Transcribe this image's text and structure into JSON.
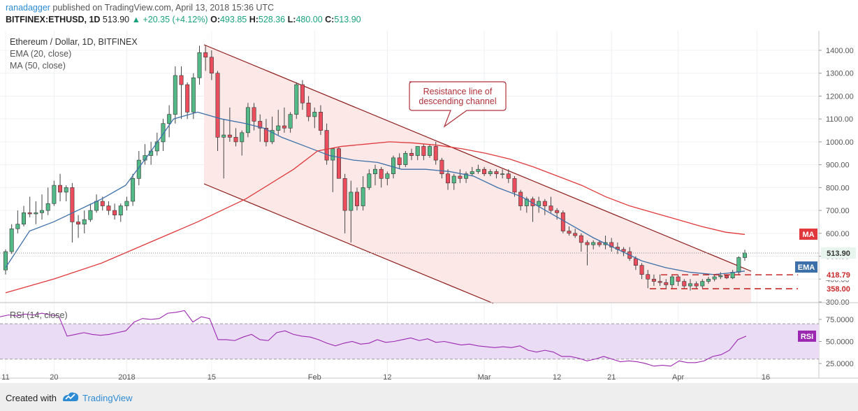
{
  "header": {
    "author": "ranadagger",
    "published": " published on TradingView.com, April 13, 2018 15:36 UTC",
    "symbol": "BITFINEX:ETHUSD, 1D ",
    "price": "513.90",
    "change": " +20.35 (+4.12%)",
    "change_arrow": "▲",
    "o_label": "O:",
    "o": "493.85",
    "h_label": "H:",
    "h": "528.36",
    "l_label": "L:",
    "l": "480.00",
    "c_label": "C:",
    "c": "513.90"
  },
  "legend": {
    "title": "Ethereum / Dollar, 1D, BITFINEX",
    "ema": "EMA (20, close)",
    "ma": "MA (50, close)",
    "rsi": "RSI (14, close)"
  },
  "annotation": {
    "line1": "Resistance line of",
    "line2": "descending channel"
  },
  "footer": {
    "created": "Created with",
    "brand": "TradingView"
  },
  "colors": {
    "up": "#53b987",
    "down": "#eb4d5c",
    "ema": "#3d6fa8",
    "ma": "#e0383c",
    "rsi": "#9c27b0",
    "channel_line": "#8b1a1a",
    "channel_fill": "#fbe5e3",
    "rsi_band": "#eadcf5"
  },
  "chart_data": {
    "type": "candlestick",
    "title": "Ethereum / Dollar, 1D, BITFINEX",
    "price_axis": {
      "ticks": [
        "1400.00",
        "1300.00",
        "1200.00",
        "1100.00",
        "1000.00",
        "900.00",
        "800.00",
        "700.00",
        "600.00",
        "500.00",
        "400.00",
        "300.00"
      ],
      "ylim": [
        300,
        1450
      ]
    },
    "x_ticks": [
      "11",
      "20",
      "2018",
      "15",
      "Feb",
      "12",
      "Mar",
      "12",
      "21",
      "Apr",
      "16"
    ],
    "date_range": [
      "2017-12-11",
      "2018-04-13"
    ],
    "candles_ohlc": [
      [
        440,
        530,
        420,
        520
      ],
      [
        520,
        640,
        510,
        620
      ],
      [
        620,
        700,
        600,
        640
      ],
      [
        640,
        720,
        630,
        690
      ],
      [
        690,
        760,
        670,
        685
      ],
      [
        685,
        740,
        640,
        690
      ],
      [
        690,
        770,
        660,
        700
      ],
      [
        700,
        800,
        680,
        730
      ],
      [
        730,
        830,
        720,
        810
      ],
      [
        810,
        860,
        740,
        780
      ],
      [
        780,
        810,
        740,
        800
      ],
      [
        800,
        820,
        560,
        650
      ],
      [
        650,
        680,
        580,
        640
      ],
      [
        640,
        700,
        600,
        660
      ],
      [
        660,
        730,
        650,
        700
      ],
      [
        700,
        770,
        690,
        740
      ],
      [
        740,
        760,
        700,
        720
      ],
      [
        720,
        740,
        680,
        700
      ],
      [
        700,
        730,
        660,
        680
      ],
      [
        680,
        730,
        650,
        720
      ],
      [
        720,
        760,
        700,
        740
      ],
      [
        740,
        860,
        720,
        840
      ],
      [
        840,
        960,
        810,
        920
      ],
      [
        920,
        990,
        900,
        940
      ],
      [
        940,
        1000,
        900,
        960
      ],
      [
        960,
        1040,
        940,
        1000
      ],
      [
        1000,
        1100,
        960,
        1080
      ],
      [
        1080,
        1160,
        1020,
        1120
      ],
      [
        1120,
        1330,
        1080,
        1290
      ],
      [
        1290,
        1330,
        1100,
        1250
      ],
      [
        1250,
        1260,
        1100,
        1130
      ],
      [
        1130,
        1300,
        1100,
        1280
      ],
      [
        1280,
        1420,
        1250,
        1390
      ],
      [
        1390,
        1420,
        1310,
        1370
      ],
      [
        1370,
        1400,
        1270,
        1300
      ],
      [
        1300,
        1310,
        960,
        1020
      ],
      [
        1020,
        1100,
        840,
        1030
      ],
      [
        1030,
        1150,
        1000,
        1020
      ],
      [
        1020,
        1060,
        980,
        1000
      ],
      [
        1000,
        1050,
        940,
        1040
      ],
      [
        1040,
        1170,
        1020,
        1150
      ],
      [
        1150,
        1170,
        1050,
        1090
      ],
      [
        1090,
        1120,
        1000,
        1060
      ],
      [
        1060,
        1100,
        980,
        1000
      ],
      [
        1000,
        1110,
        990,
        1050
      ],
      [
        1050,
        1140,
        1030,
        1070
      ],
      [
        1070,
        1150,
        1040,
        1060
      ],
      [
        1060,
        1130,
        1040,
        1120
      ],
      [
        1120,
        1260,
        1100,
        1250
      ],
      [
        1250,
        1270,
        1140,
        1170
      ],
      [
        1170,
        1200,
        1090,
        1110
      ],
      [
        1110,
        1150,
        1060,
        1130
      ],
      [
        1130,
        1160,
        1030,
        1050
      ],
      [
        1050,
        1080,
        900,
        920
      ],
      [
        920,
        970,
        780,
        970
      ],
      [
        970,
        980,
        870,
        840
      ],
      [
        840,
        860,
        600,
        700
      ],
      [
        700,
        830,
        560,
        780
      ],
      [
        780,
        800,
        700,
        720
      ],
      [
        720,
        850,
        700,
        800
      ],
      [
        800,
        880,
        790,
        860
      ],
      [
        860,
        900,
        810,
        880
      ],
      [
        880,
        890,
        800,
        840
      ],
      [
        840,
        870,
        810,
        860
      ],
      [
        860,
        940,
        840,
        930
      ],
      [
        930,
        950,
        880,
        900
      ],
      [
        900,
        960,
        890,
        950
      ],
      [
        950,
        970,
        920,
        940
      ],
      [
        940,
        980,
        920,
        980
      ],
      [
        980,
        990,
        920,
        940
      ],
      [
        940,
        990,
        930,
        980
      ],
      [
        980,
        1000,
        900,
        920
      ],
      [
        920,
        930,
        840,
        860
      ],
      [
        860,
        880,
        790,
        820
      ],
      [
        820,
        860,
        790,
        850
      ],
      [
        850,
        880,
        820,
        840
      ],
      [
        840,
        870,
        820,
        860
      ],
      [
        860,
        890,
        850,
        870
      ],
      [
        870,
        900,
        860,
        880
      ],
      [
        880,
        890,
        850,
        860
      ],
      [
        860,
        880,
        850,
        870
      ],
      [
        870,
        880,
        840,
        860
      ],
      [
        860,
        880,
        840,
        860
      ],
      [
        860,
        880,
        820,
        840
      ],
      [
        840,
        850,
        760,
        780
      ],
      [
        780,
        790,
        700,
        720
      ],
      [
        720,
        760,
        690,
        750
      ],
      [
        750,
        760,
        650,
        720
      ],
      [
        720,
        760,
        690,
        740
      ],
      [
        740,
        750,
        680,
        720
      ],
      [
        720,
        760,
        690,
        700
      ],
      [
        700,
        710,
        660,
        690
      ],
      [
        690,
        700,
        600,
        610
      ],
      [
        610,
        630,
        590,
        600
      ],
      [
        600,
        620,
        580,
        590
      ],
      [
        590,
        600,
        520,
        560
      ],
      [
        560,
        570,
        460,
        550
      ],
      [
        550,
        570,
        530,
        560
      ],
      [
        560,
        570,
        540,
        550
      ],
      [
        550,
        590,
        530,
        560
      ],
      [
        560,
        580,
        520,
        540
      ],
      [
        540,
        560,
        510,
        530
      ],
      [
        530,
        540,
        500,
        520
      ],
      [
        520,
        540,
        480,
        490
      ],
      [
        490,
        500,
        440,
        460
      ],
      [
        460,
        470,
        400,
        420
      ],
      [
        420,
        440,
        360,
        400
      ],
      [
        400,
        420,
        370,
        390
      ],
      [
        390,
        420,
        370,
        385
      ],
      [
        385,
        400,
        360,
        375
      ],
      [
        375,
        420,
        360,
        410
      ],
      [
        410,
        420,
        370,
        390
      ],
      [
        390,
        400,
        360,
        370
      ],
      [
        370,
        400,
        350,
        380
      ],
      [
        380,
        390,
        360,
        370
      ],
      [
        370,
        400,
        360,
        390
      ],
      [
        390,
        410,
        380,
        400
      ],
      [
        400,
        420,
        390,
        410
      ],
      [
        410,
        430,
        400,
        415
      ],
      [
        415,
        420,
        400,
        405
      ],
      [
        405,
        440,
        400,
        430
      ],
      [
        430,
        500,
        420,
        494
      ],
      [
        494,
        528,
        480,
        514
      ]
    ],
    "ema20_approx": [
      [
        0,
        450
      ],
      [
        20,
        610
      ],
      [
        40,
        650
      ],
      [
        60,
        700
      ],
      [
        80,
        750
      ],
      [
        100,
        810
      ],
      [
        120,
        950
      ],
      [
        140,
        1100
      ],
      [
        160,
        1130
      ],
      [
        180,
        1100
      ],
      [
        200,
        1080
      ],
      [
        215,
        1060
      ],
      [
        230,
        1020
      ],
      [
        250,
        980
      ],
      [
        270,
        940
      ],
      [
        290,
        920
      ],
      [
        310,
        910
      ],
      [
        330,
        880
      ],
      [
        350,
        880
      ],
      [
        370,
        870
      ],
      [
        390,
        850
      ],
      [
        410,
        800
      ],
      [
        430,
        760
      ],
      [
        450,
        700
      ],
      [
        470,
        640
      ],
      [
        490,
        580
      ],
      [
        510,
        530
      ],
      [
        530,
        480
      ],
      [
        550,
        450
      ],
      [
        570,
        430
      ],
      [
        590,
        420
      ],
      [
        600,
        425
      ],
      [
        616,
        435
      ]
    ],
    "ma50_approx": [
      [
        0,
        340
      ],
      [
        40,
        400
      ],
      [
        80,
        470
      ],
      [
        120,
        560
      ],
      [
        160,
        650
      ],
      [
        200,
        750
      ],
      [
        240,
        880
      ],
      [
        260,
        960
      ],
      [
        280,
        980
      ],
      [
        300,
        990
      ],
      [
        320,
        1000
      ],
      [
        340,
        995
      ],
      [
        360,
        985
      ],
      [
        380,
        970
      ],
      [
        400,
        950
      ],
      [
        420,
        925
      ],
      [
        440,
        890
      ],
      [
        460,
        850
      ],
      [
        480,
        810
      ],
      [
        500,
        760
      ],
      [
        520,
        720
      ],
      [
        540,
        690
      ],
      [
        560,
        660
      ],
      [
        580,
        630
      ],
      [
        600,
        605
      ],
      [
        616,
        595
      ]
    ],
    "rsi": {
      "title": "RSI (14, close)",
      "axis_ticks": [
        "75.0000",
        "50.0000",
        "25.0000"
      ],
      "ylim": [
        10,
        90
      ],
      "series": [
        [
          0,
          78
        ],
        [
          12,
          80
        ],
        [
          24,
          79
        ],
        [
          36,
          81
        ],
        [
          48,
          80
        ],
        [
          60,
          82
        ],
        [
          72,
          80
        ],
        [
          84,
          79
        ],
        [
          96,
          56
        ],
        [
          108,
          58
        ],
        [
          120,
          60
        ],
        [
          132,
          58
        ],
        [
          144,
          57
        ],
        [
          156,
          58
        ],
        [
          168,
          60
        ],
        [
          180,
          62
        ],
        [
          192,
          72
        ],
        [
          204,
          76
        ],
        [
          216,
          75
        ],
        [
          228,
          76
        ],
        [
          240,
          82
        ],
        [
          252,
          83
        ],
        [
          264,
          85
        ],
        [
          276,
          72
        ],
        [
          288,
          78
        ],
        [
          300,
          76
        ],
        [
          312,
          52
        ],
        [
          324,
          52
        ],
        [
          336,
          51
        ],
        [
          348,
          55
        ],
        [
          360,
          58
        ],
        [
          372,
          52
        ],
        [
          384,
          51
        ],
        [
          396,
          60
        ],
        [
          408,
          62
        ],
        [
          420,
          58
        ],
        [
          432,
          56
        ],
        [
          444,
          55
        ],
        [
          456,
          52
        ],
        [
          468,
          48
        ],
        [
          480,
          45
        ],
        [
          492,
          48
        ],
        [
          504,
          50
        ],
        [
          516,
          47
        ],
        [
          528,
          48
        ],
        [
          540,
          52
        ],
        [
          552,
          49
        ],
        [
          564,
          50
        ],
        [
          576,
          52
        ],
        [
          588,
          54
        ],
        [
          600,
          51
        ],
        [
          612,
          53
        ],
        [
          624,
          49
        ],
        [
          636,
          50
        ],
        [
          648,
          48
        ],
        [
          660,
          46
        ],
        [
          672,
          47
        ],
        [
          684,
          45
        ],
        [
          696,
          44
        ],
        [
          708,
          43
        ],
        [
          720,
          44
        ],
        [
          732,
          43
        ],
        [
          744,
          45
        ],
        [
          756,
          40
        ],
        [
          768,
          38
        ],
        [
          780,
          40
        ],
        [
          792,
          38
        ],
        [
          804,
          33
        ],
        [
          816,
          33
        ],
        [
          828,
          31
        ],
        [
          840,
          28
        ],
        [
          852,
          30
        ],
        [
          864,
          33
        ],
        [
          876,
          30
        ],
        [
          888,
          27
        ],
        [
          900,
          28
        ],
        [
          912,
          27
        ],
        [
          924,
          25
        ],
        [
          936,
          22
        ],
        [
          948,
          23
        ],
        [
          960,
          22
        ],
        [
          972,
          28
        ],
        [
          984,
          26
        ],
        [
          996,
          26
        ],
        [
          1008,
          28
        ],
        [
          1020,
          33
        ],
        [
          1032,
          35
        ],
        [
          1044,
          40
        ],
        [
          1056,
          52
        ],
        [
          1068,
          56
        ]
      ]
    }
  }
}
